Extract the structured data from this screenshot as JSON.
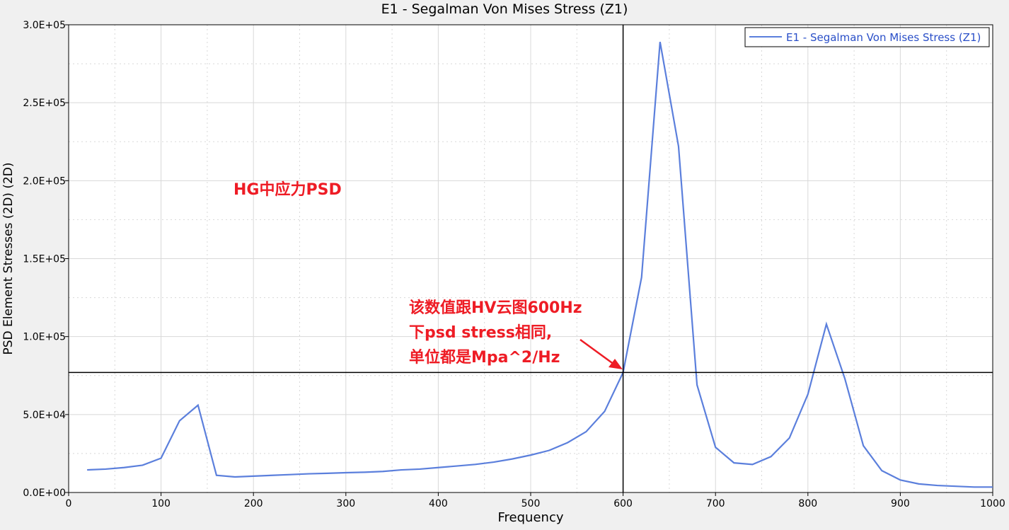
{
  "chart_data": {
    "type": "line",
    "title": "E1 - Segalman Von Mises Stress (Z1)",
    "xlabel": "Frequency",
    "ylabel": "PSD Element Stresses (2D) (2D)",
    "xlim": [
      0,
      1000
    ],
    "ylim": [
      0,
      300000
    ],
    "xticks": [
      "0",
      "100",
      "200",
      "300",
      "400",
      "500",
      "600",
      "700",
      "800",
      "900",
      "1000"
    ],
    "yticks": [
      "0.0E+00",
      "5.0E+04",
      "1.0E+05",
      "1.5E+05",
      "2.0E+05",
      "2.5E+05",
      "3.0E+05"
    ],
    "grid": true,
    "legend_position": "top-right",
    "series": [
      {
        "name": "E1 - Segalman Von Mises Stress (Z1)",
        "color": "#5b7fdc",
        "x": [
          20,
          40,
          60,
          80,
          100,
          120,
          140,
          160,
          180,
          200,
          220,
          240,
          260,
          280,
          300,
          320,
          340,
          360,
          380,
          400,
          420,
          440,
          460,
          480,
          500,
          520,
          540,
          560,
          580,
          600,
          620,
          640,
          660,
          680,
          700,
          720,
          740,
          760,
          780,
          800,
          820,
          840,
          860,
          880,
          900,
          920,
          940,
          960,
          980,
          1000
        ],
        "y": [
          14500,
          15000,
          16000,
          17500,
          22000,
          46000,
          56000,
          11000,
          10000,
          10500,
          11000,
          11500,
          12000,
          12300,
          12700,
          13000,
          13500,
          14500,
          15000,
          16000,
          17000,
          18000,
          19500,
          21500,
          24000,
          27000,
          32000,
          39000,
          52000,
          77000,
          138000,
          289000,
          222000,
          69000,
          29000,
          19000,
          18000,
          23000,
          35000,
          63000,
          108000,
          73000,
          30000,
          14000,
          8000,
          5500,
          4500,
          4000,
          3500,
          3500
        ]
      }
    ],
    "cursor": {
      "x": 600,
      "y": 77000
    }
  },
  "annotations": {
    "label1": "HG中应力PSD",
    "label2_line1": "该数值跟HV云图600Hz",
    "label2_line2": "下psd stress相同,",
    "label2_line3": "单位都是Mpa^2/Hz"
  }
}
